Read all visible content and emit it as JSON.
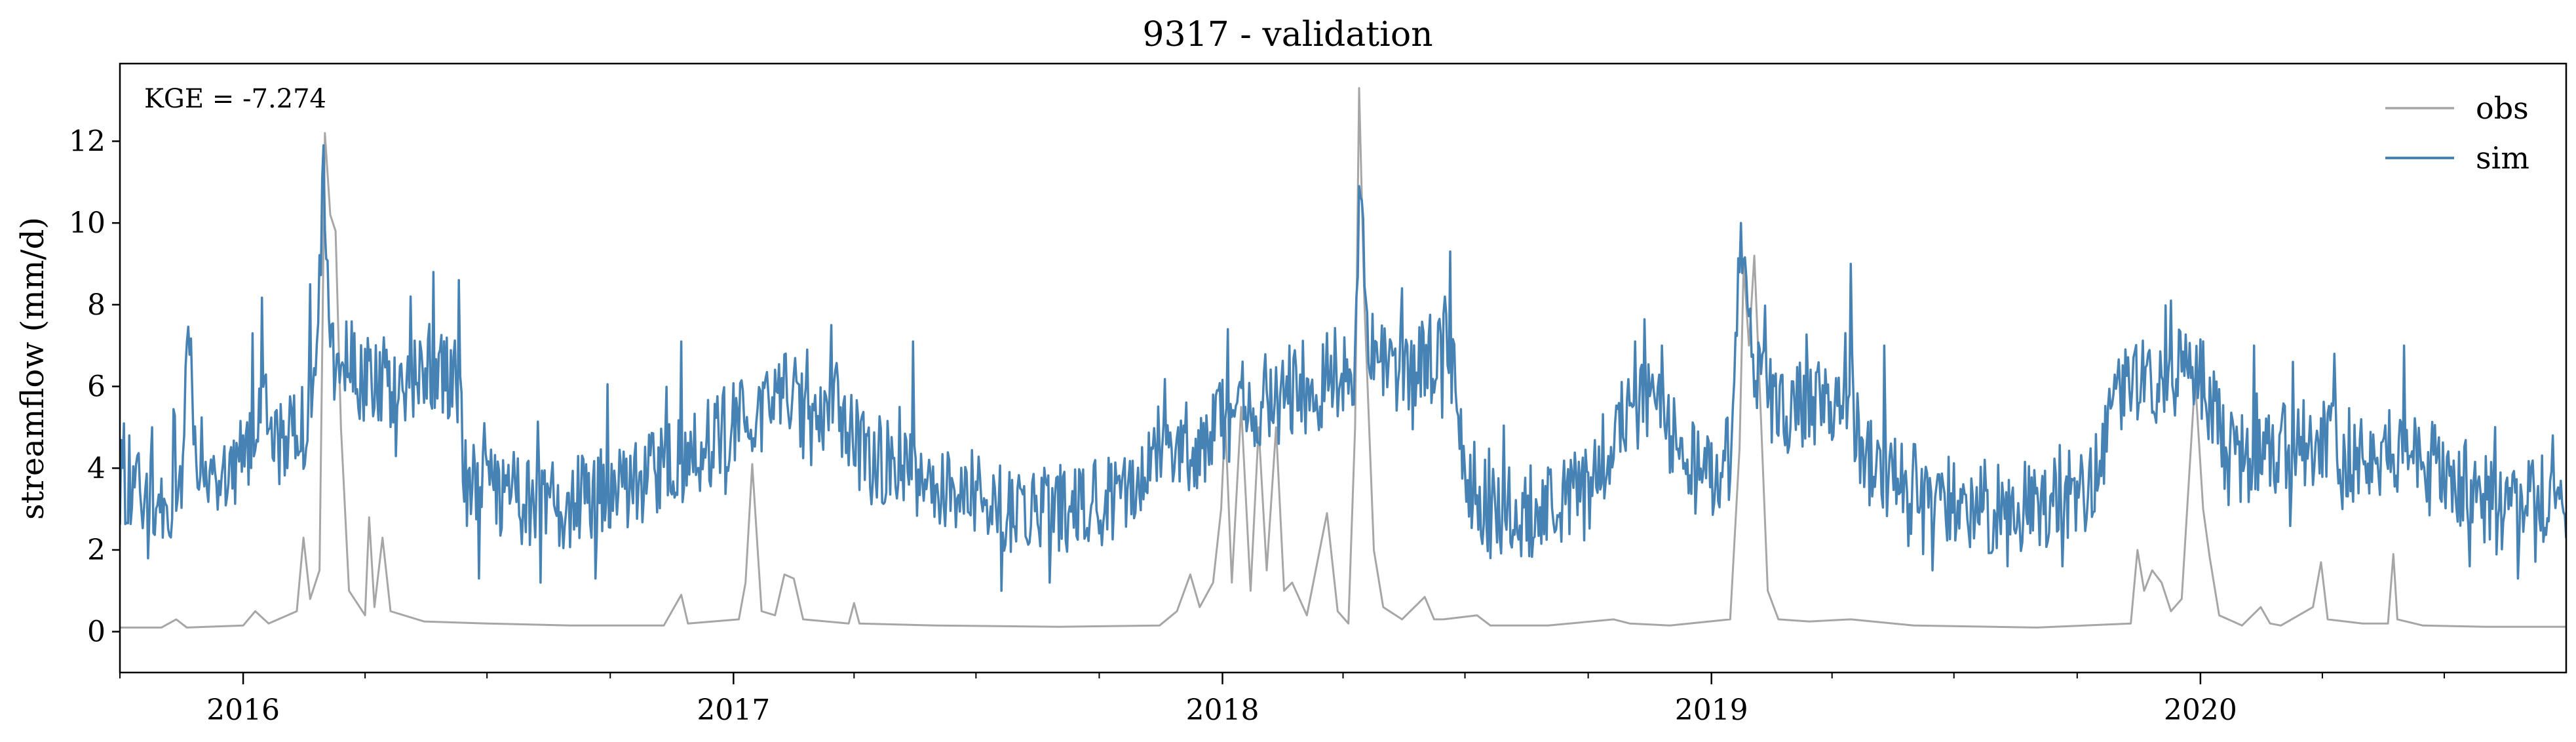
{
  "chart_data": {
    "type": "line",
    "title": "9317 - validation",
    "xlabel": "",
    "ylabel": "streamflow (mm/d)",
    "annotation": "KGE = -7.274",
    "x_range": [
      "2015-10-01",
      "2020-09-30"
    ],
    "ylim": [
      -1,
      13.9
    ],
    "y_ticks": [
      0,
      2,
      4,
      6,
      8,
      10,
      12
    ],
    "x_ticks": [
      {
        "date": "2016-01-01",
        "label": "2016"
      },
      {
        "date": "2017-01-01",
        "label": "2017"
      },
      {
        "date": "2018-01-01",
        "label": "2018"
      },
      {
        "date": "2019-01-01",
        "label": "2019"
      },
      {
        "date": "2020-01-01",
        "label": "2020"
      }
    ],
    "grid": false,
    "legend_position": "top-right",
    "series": [
      {
        "name": "obs",
        "color": "#a6a6a6",
        "points": [
          [
            "2015-10-01",
            0.1
          ],
          [
            "2015-11-01",
            0.1
          ],
          [
            "2015-11-12",
            0.3
          ],
          [
            "2015-11-20",
            0.1
          ],
          [
            "2016-01-01",
            0.15
          ],
          [
            "2016-01-10",
            0.5
          ],
          [
            "2016-01-20",
            0.2
          ],
          [
            "2016-02-10",
            0.5
          ],
          [
            "2016-02-15",
            2.3
          ],
          [
            "2016-02-20",
            0.8
          ],
          [
            "2016-02-27",
            1.5
          ],
          [
            "2016-03-02",
            12.2
          ],
          [
            "2016-03-06",
            10.2
          ],
          [
            "2016-03-10",
            9.8
          ],
          [
            "2016-03-14",
            5.0
          ],
          [
            "2016-03-20",
            1.0
          ],
          [
            "2016-04-01",
            0.4
          ],
          [
            "2016-04-04",
            2.8
          ],
          [
            "2016-04-08",
            0.6
          ],
          [
            "2016-04-14",
            2.3
          ],
          [
            "2016-04-20",
            0.5
          ],
          [
            "2016-05-15",
            0.25
          ],
          [
            "2016-07-01",
            0.2
          ],
          [
            "2016-09-01",
            0.15
          ],
          [
            "2016-11-10",
            0.15
          ],
          [
            "2016-11-23",
            0.9
          ],
          [
            "2016-11-28",
            0.2
          ],
          [
            "2017-01-05",
            0.3
          ],
          [
            "2017-01-10",
            1.2
          ],
          [
            "2017-01-15",
            4.1
          ],
          [
            "2017-01-22",
            0.5
          ],
          [
            "2017-02-01",
            0.4
          ],
          [
            "2017-02-08",
            1.4
          ],
          [
            "2017-02-15",
            1.3
          ],
          [
            "2017-02-22",
            0.3
          ],
          [
            "2017-03-28",
            0.2
          ],
          [
            "2017-04-01",
            0.7
          ],
          [
            "2017-04-05",
            0.2
          ],
          [
            "2017-06-01",
            0.15
          ],
          [
            "2017-09-01",
            0.12
          ],
          [
            "2017-11-15",
            0.15
          ],
          [
            "2017-11-28",
            0.5
          ],
          [
            "2017-12-08",
            1.4
          ],
          [
            "2017-12-15",
            0.6
          ],
          [
            "2017-12-25",
            1.2
          ],
          [
            "2017-12-31",
            3.0
          ],
          [
            "2018-01-03",
            5.2
          ],
          [
            "2018-01-08",
            1.2
          ],
          [
            "2018-01-15",
            5.5
          ],
          [
            "2018-01-22",
            1.0
          ],
          [
            "2018-01-28",
            5.0
          ],
          [
            "2018-02-03",
            1.5
          ],
          [
            "2018-02-10",
            5.0
          ],
          [
            "2018-02-16",
            1.0
          ],
          [
            "2018-02-22",
            1.2
          ],
          [
            "2018-03-05",
            0.4
          ],
          [
            "2018-03-20",
            2.9
          ],
          [
            "2018-03-28",
            0.5
          ],
          [
            "2018-04-05",
            0.2
          ],
          [
            "2018-04-10",
            5.0
          ],
          [
            "2018-04-13",
            13.3
          ],
          [
            "2018-04-17",
            8.0
          ],
          [
            "2018-04-24",
            2.0
          ],
          [
            "2018-05-01",
            0.6
          ],
          [
            "2018-05-15",
            0.3
          ],
          [
            "2018-06-01",
            0.85
          ],
          [
            "2018-06-08",
            0.3
          ],
          [
            "2018-06-15",
            0.3
          ],
          [
            "2018-07-10",
            0.4
          ],
          [
            "2018-07-20",
            0.15
          ],
          [
            "2018-09-01",
            0.15
          ],
          [
            "2018-10-20",
            0.3
          ],
          [
            "2018-11-01",
            0.2
          ],
          [
            "2018-12-01",
            0.15
          ],
          [
            "2019-01-15",
            0.3
          ],
          [
            "2019-01-22",
            4.5
          ],
          [
            "2019-01-25",
            9.0
          ],
          [
            "2019-01-29",
            7.0
          ],
          [
            "2019-02-02",
            9.2
          ],
          [
            "2019-02-06",
            6.0
          ],
          [
            "2019-02-12",
            1.0
          ],
          [
            "2019-02-20",
            0.3
          ],
          [
            "2019-03-15",
            0.25
          ],
          [
            "2019-04-15",
            0.3
          ],
          [
            "2019-06-01",
            0.15
          ],
          [
            "2019-09-01",
            0.1
          ],
          [
            "2019-11-10",
            0.2
          ],
          [
            "2019-11-15",
            2.0
          ],
          [
            "2019-11-20",
            1.0
          ],
          [
            "2019-11-26",
            1.5
          ],
          [
            "2019-12-03",
            1.2
          ],
          [
            "2019-12-10",
            0.5
          ],
          [
            "2019-12-18",
            0.8
          ],
          [
            "2019-12-28",
            6.2
          ],
          [
            "2020-01-03",
            3.0
          ],
          [
            "2020-01-08",
            1.8
          ],
          [
            "2020-01-15",
            0.4
          ],
          [
            "2020-02-01",
            0.15
          ],
          [
            "2020-02-15",
            0.6
          ],
          [
            "2020-02-22",
            0.2
          ],
          [
            "2020-03-01",
            0.15
          ],
          [
            "2020-03-25",
            0.6
          ],
          [
            "2020-03-31",
            1.7
          ],
          [
            "2020-04-05",
            0.3
          ],
          [
            "2020-05-01",
            0.2
          ],
          [
            "2020-05-20",
            0.2
          ],
          [
            "2020-05-24",
            1.9
          ],
          [
            "2020-05-27",
            0.3
          ],
          [
            "2020-06-15",
            0.15
          ],
          [
            "2020-08-01",
            0.12
          ],
          [
            "2020-09-30",
            0.12
          ]
        ]
      },
      {
        "name": "sim",
        "color": "#4682b4",
        "points": [
          [
            "2015-10-01",
            3.6
          ],
          [
            "2015-10-20",
            3.5
          ],
          [
            "2015-11-05",
            3.4
          ],
          [
            "2015-11-15",
            3.3
          ],
          [
            "2015-11-20",
            7.7
          ],
          [
            "2015-11-28",
            4.2
          ],
          [
            "2015-12-20",
            3.9
          ],
          [
            "2016-01-05",
            4.3
          ],
          [
            "2016-01-15",
            5.8
          ],
          [
            "2016-01-25",
            4.5
          ],
          [
            "2016-02-15",
            5.0
          ],
          [
            "2016-02-25",
            6.0
          ],
          [
            "2016-03-01",
            11.9
          ],
          [
            "2016-03-05",
            7.0
          ],
          [
            "2016-04-01",
            6.2
          ],
          [
            "2016-05-01",
            6.0
          ],
          [
            "2016-05-15",
            6.5
          ],
          [
            "2016-06-01",
            6.2
          ],
          [
            "2016-06-10",
            6.0
          ],
          [
            "2016-06-15",
            3.6
          ],
          [
            "2016-07-15",
            3.3
          ],
          [
            "2016-09-01",
            3.1
          ],
          [
            "2016-10-01",
            3.4
          ],
          [
            "2016-11-01",
            3.9
          ],
          [
            "2016-12-15",
            4.6
          ],
          [
            "2017-01-05",
            5.2
          ],
          [
            "2017-01-20",
            5.5
          ],
          [
            "2017-02-10",
            5.8
          ],
          [
            "2017-03-01",
            5.1
          ],
          [
            "2017-03-20",
            5.5
          ],
          [
            "2017-04-10",
            4.3
          ],
          [
            "2017-05-10",
            4.0
          ],
          [
            "2017-06-15",
            3.5
          ],
          [
            "2017-07-15",
            3.1
          ],
          [
            "2017-08-20",
            3.0
          ],
          [
            "2017-10-01",
            3.2
          ],
          [
            "2017-11-01",
            3.8
          ],
          [
            "2017-12-15",
            4.5
          ],
          [
            "2017-12-28",
            5.2
          ],
          [
            "2018-01-15",
            5.3
          ],
          [
            "2018-02-01",
            5.7
          ],
          [
            "2018-03-01",
            5.8
          ],
          [
            "2018-03-25",
            6.3
          ],
          [
            "2018-04-10",
            6.5
          ],
          [
            "2018-04-13",
            10.9
          ],
          [
            "2018-04-20",
            6.7
          ],
          [
            "2018-05-10",
            6.5
          ],
          [
            "2018-06-10",
            6.7
          ],
          [
            "2018-06-20",
            7.0
          ],
          [
            "2018-07-01",
            3.9
          ],
          [
            "2018-07-15",
            3.1
          ],
          [
            "2018-08-15",
            2.9
          ],
          [
            "2018-10-01",
            3.4
          ],
          [
            "2018-10-25",
            5.3
          ],
          [
            "2018-11-20",
            5.5
          ],
          [
            "2018-12-10",
            4.2
          ],
          [
            "2018-12-31",
            3.8
          ],
          [
            "2019-01-15",
            4.2
          ],
          [
            "2019-01-23",
            10.0
          ],
          [
            "2019-02-01",
            6.2
          ],
          [
            "2019-02-20",
            5.4
          ],
          [
            "2019-03-20",
            5.5
          ],
          [
            "2019-04-05",
            5.7
          ],
          [
            "2019-05-01",
            4.1
          ],
          [
            "2019-06-01",
            3.5
          ],
          [
            "2019-07-15",
            3.1
          ],
          [
            "2019-08-15",
            3.0
          ],
          [
            "2019-09-15",
            3.2
          ],
          [
            "2019-10-15",
            3.7
          ],
          [
            "2019-11-01",
            6.0
          ],
          [
            "2019-11-20",
            6.3
          ],
          [
            "2019-12-01",
            6.2
          ],
          [
            "2019-12-15",
            6.4
          ],
          [
            "2019-12-28",
            6.5
          ],
          [
            "2020-01-10",
            5.6
          ],
          [
            "2020-01-20",
            4.2
          ],
          [
            "2020-02-15",
            4.3
          ],
          [
            "2020-03-10",
            4.6
          ],
          [
            "2020-04-10",
            4.5
          ],
          [
            "2020-05-01",
            4.2
          ],
          [
            "2020-06-01",
            4.5
          ],
          [
            "2020-07-10",
            3.8
          ],
          [
            "2020-08-10",
            2.9
          ],
          [
            "2020-09-01",
            3.4
          ],
          [
            "2020-09-30",
            3.1
          ]
        ],
        "spikes": [
          [
            "2015-10-08",
            4.8
          ],
          [
            "2015-10-25",
            5.0
          ],
          [
            "2015-11-02",
            2.3
          ],
          [
            "2016-01-08",
            7.3
          ],
          [
            "2016-02-20",
            8.5
          ],
          [
            "2016-04-15",
            7.2
          ],
          [
            "2016-05-05",
            8.2
          ],
          [
            "2016-05-22",
            8.8
          ],
          [
            "2016-06-10",
            8.6
          ],
          [
            "2016-06-25",
            1.3
          ],
          [
            "2016-08-10",
            1.2
          ],
          [
            "2016-09-20",
            1.3
          ],
          [
            "2016-11-23",
            7.1
          ],
          [
            "2017-01-25",
            6.2
          ],
          [
            "2017-02-25",
            6.9
          ],
          [
            "2017-03-15",
            7.5
          ],
          [
            "2017-05-15",
            7.1
          ],
          [
            "2017-07-20",
            1.0
          ],
          [
            "2017-08-25",
            1.2
          ],
          [
            "2018-01-05",
            7.4
          ],
          [
            "2018-02-20",
            7.0
          ],
          [
            "2018-05-15",
            8.4
          ],
          [
            "2018-06-20",
            9.3
          ],
          [
            "2018-07-20",
            1.8
          ],
          [
            "2018-11-05",
            7.1
          ],
          [
            "2018-11-25",
            7.0
          ],
          [
            "2019-04-15",
            9.0
          ],
          [
            "2019-05-10",
            7.0
          ],
          [
            "2019-06-15",
            1.5
          ],
          [
            "2019-08-10",
            1.6
          ],
          [
            "2019-09-20",
            1.6
          ],
          [
            "2019-12-10",
            8.1
          ],
          [
            "2020-02-10",
            7.0
          ],
          [
            "2020-03-10",
            6.6
          ],
          [
            "2020-04-10",
            6.8
          ],
          [
            "2020-06-01",
            7.0
          ],
          [
            "2020-07-20",
            1.6
          ],
          [
            "2020-08-25",
            1.3
          ],
          [
            "2020-09-20",
            4.8
          ]
        ]
      }
    ]
  }
}
